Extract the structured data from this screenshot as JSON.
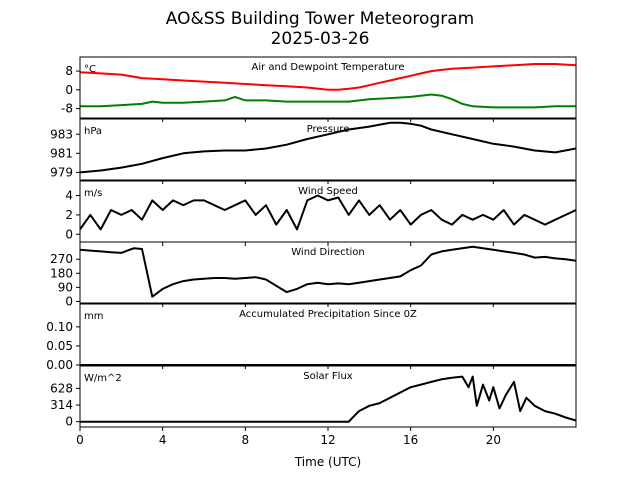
{
  "page": {
    "title_line1": "AO&SS Building Tower Meteorogram",
    "title_line2": "2025-03-26"
  },
  "colors": {
    "temperature": "#ff0000",
    "dewpoint": "#008000",
    "line": "#000000"
  },
  "chart_data": {
    "type": "line",
    "xlabel": "Time (UTC)",
    "xlim": [
      0,
      24
    ],
    "xticks": [
      0,
      4,
      8,
      12,
      16,
      20
    ],
    "panels": [
      {
        "key": "temp",
        "title": "Air and Dewpoint Temperature",
        "unit": "°C",
        "ylim": [
          -12,
          14
        ],
        "yticks": [
          -8,
          0,
          8
        ],
        "series": [
          {
            "color": "#ff0000",
            "x": [
              0,
              1,
              2,
              3,
              4,
              5,
              6,
              7,
              8,
              9,
              10,
              11,
              12,
              12.5,
              13,
              13.5,
              14,
              14.5,
              15,
              15.5,
              16,
              16.5,
              17,
              17.5,
              18,
              19,
              20,
              21,
              22,
              23,
              24
            ],
            "y": [
              7.5,
              7,
              6.5,
              5,
              4.5,
              4,
              3.5,
              3,
              2.5,
              2,
              1.5,
              1,
              0,
              0,
              0.5,
              1,
              2,
              3,
              4,
              5,
              6,
              7,
              8,
              8.5,
              9,
              9.5,
              10,
              10.5,
              11,
              11,
              10.5
            ]
          },
          {
            "color": "#008000",
            "x": [
              0,
              1,
              2,
              3,
              3.5,
              4,
              5,
              6,
              7,
              7.5,
              8,
              9,
              10,
              11,
              12,
              13,
              14,
              15,
              16,
              16.5,
              17,
              17.5,
              18,
              18.5,
              19,
              20,
              21,
              22,
              23,
              24
            ],
            "y": [
              -7,
              -7,
              -6.5,
              -6,
              -5,
              -5.5,
              -5.5,
              -5,
              -4.5,
              -3,
              -4.5,
              -4.5,
              -5,
              -5,
              -5,
              -5,
              -4,
              -3.5,
              -3,
              -2.5,
              -2,
              -2.5,
              -4,
              -6,
              -7,
              -7.5,
              -7.5,
              -7.5,
              -7,
              -7
            ]
          }
        ]
      },
      {
        "key": "pressure",
        "title": "Pressure",
        "unit": "hPa",
        "ylim": [
          978.2,
          984.6
        ],
        "yticks": [
          979,
          981,
          983
        ],
        "series": [
          {
            "color": "#000000",
            "x": [
              0,
              1,
              2,
              3,
              4,
              5,
              6,
              7,
              8,
              9,
              10,
              11,
              12,
              13,
              14,
              15,
              15.5,
              16,
              16.5,
              17,
              18,
              19,
              20,
              21,
              22,
              23,
              24
            ],
            "y": [
              979,
              979.2,
              979.5,
              979.9,
              980.5,
              981,
              981.2,
              981.3,
              981.3,
              981.5,
              981.9,
              982.5,
              983,
              983.5,
              983.8,
              984.2,
              984.2,
              984.1,
              983.9,
              983.5,
              983,
              982.5,
              982,
              981.7,
              981.3,
              981.1,
              981.5
            ]
          }
        ]
      },
      {
        "key": "wind_speed",
        "title": "Wind Speed",
        "unit": "m/s",
        "ylim": [
          -0.8,
          5.5
        ],
        "yticks": [
          0,
          2,
          4
        ],
        "series": [
          {
            "color": "#000000",
            "x": [
              0,
              0.5,
              1,
              1.5,
              2,
              2.5,
              3,
              3.5,
              4,
              4.5,
              5,
              5.5,
              6,
              6.5,
              7,
              7.5,
              8,
              8.5,
              9,
              9.5,
              10,
              10.5,
              11,
              11.5,
              12,
              12.5,
              13,
              13.5,
              14,
              14.5,
              15,
              15.5,
              16,
              16.5,
              17,
              17.5,
              18,
              18.5,
              19,
              19.5,
              20,
              20.5,
              21,
              21.5,
              22,
              22.5,
              23,
              23.5,
              24
            ],
            "y": [
              0.5,
              2,
              0.5,
              2.5,
              2,
              2.5,
              1.5,
              3.5,
              2.5,
              3.5,
              3,
              3.5,
              3.5,
              3,
              2.5,
              3,
              3.5,
              2,
              3,
              1,
              2.5,
              0.5,
              3.5,
              4,
              3.5,
              3.8,
              2,
              3.5,
              2,
              3,
              1.5,
              2.5,
              1,
              2,
              2.5,
              1.5,
              1,
              2,
              1.5,
              2,
              1.5,
              2.5,
              1,
              2,
              1.5,
              1,
              1.5,
              2,
              2.5
            ]
          }
        ]
      },
      {
        "key": "wind_dir",
        "title": "Wind Direction",
        "unit": "",
        "ylim": [
          -10,
          380
        ],
        "yticks": [
          0,
          90,
          180,
          270
        ],
        "series": [
          {
            "color": "#000000",
            "x": [
              0,
              0.5,
              1,
              1.5,
              2,
              2.3,
              2.6,
              3,
              3.5,
              4,
              4.5,
              5,
              5.5,
              6,
              6.5,
              7,
              7.5,
              8,
              8.5,
              9,
              9.5,
              10,
              10.5,
              11,
              11.5,
              12,
              12.5,
              13,
              13.5,
              14,
              14.5,
              15,
              15.5,
              16,
              16.5,
              17,
              17.5,
              18,
              18.5,
              19,
              19.5,
              20,
              20.5,
              21,
              21.5,
              22,
              22.5,
              23,
              23.5,
              24
            ],
            "y": [
              330,
              325,
              320,
              315,
              310,
              325,
              340,
              335,
              30,
              80,
              110,
              130,
              140,
              145,
              150,
              150,
              145,
              150,
              155,
              140,
              100,
              60,
              80,
              110,
              120,
              110,
              115,
              110,
              120,
              130,
              140,
              150,
              160,
              200,
              230,
              300,
              320,
              330,
              340,
              350,
              340,
              330,
              320,
              310,
              300,
              280,
              285,
              275,
              270,
              260
            ]
          }
        ]
      },
      {
        "key": "precip",
        "title": "Accumulated Precipitation Since 0Z",
        "unit": "mm",
        "ylim": [
          0,
          0.16
        ],
        "yticks": [
          0.0,
          0.05,
          0.1
        ],
        "ytick_labels": [
          "0.00",
          "0.05",
          "0.10"
        ],
        "series": [
          {
            "color": "#000000",
            "x": [
              0,
              24
            ],
            "y": [
              0,
              0
            ]
          }
        ]
      },
      {
        "key": "solar",
        "title": "Solar Flux",
        "unit": "W/m^2",
        "ylim": [
          -100,
          1050
        ],
        "yticks": [
          0,
          314,
          628
        ],
        "series": [
          {
            "color": "#000000",
            "x": [
              0,
              1,
              2,
              3,
              4,
              5,
              6,
              7,
              8,
              9,
              10,
              11,
              12,
              13,
              13.5,
              14,
              14.5,
              15,
              15.5,
              16,
              16.5,
              17,
              17.5,
              18,
              18.5,
              18.8,
              19,
              19.2,
              19.5,
              19.8,
              20,
              20.3,
              20.6,
              21,
              21.3,
              21.6,
              22,
              22.5,
              23,
              23.5,
              24
            ],
            "y": [
              0,
              0,
              0,
              0,
              0,
              0,
              0,
              0,
              0,
              0,
              0,
              0,
              0,
              0,
              200,
              300,
              350,
              450,
              550,
              650,
              700,
              750,
              800,
              830,
              850,
              650,
              850,
              300,
              700,
              400,
              650,
              250,
              500,
              750,
              200,
              450,
              300,
              200,
              150,
              80,
              20
            ]
          }
        ]
      }
    ]
  }
}
